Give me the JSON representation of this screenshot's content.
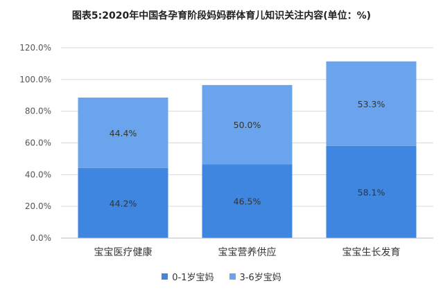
{
  "colors": {
    "series_0_1": "#3f86e0",
    "series_3_6": "#6aa4ec",
    "grid": "#d9d9d9",
    "axis": "#bfbfbf"
  },
  "chart_data": {
    "type": "bar",
    "stacked": true,
    "title": "图表5:2020年中国各孕育阶段妈妈群体育儿知识关注内容(单位：%)",
    "categories": [
      "宝宝医疗健康",
      "宝宝营养供应",
      "宝宝生长发育"
    ],
    "series": [
      {
        "name": "0-1岁宝妈",
        "values": [
          44.2,
          46.5,
          58.1
        ],
        "labels": [
          "44.2%",
          "46.5%",
          "58.1%"
        ]
      },
      {
        "name": "3-6岁宝妈",
        "values": [
          44.4,
          50.0,
          53.3
        ],
        "labels": [
          "44.4%",
          "50.0%",
          "53.3%"
        ]
      }
    ],
    "ylim": [
      0,
      120
    ],
    "yticks": [
      "0.0%",
      "20.0%",
      "40.0%",
      "60.0%",
      "80.0%",
      "100.0%",
      "120.0%"
    ],
    "grid": true,
    "legend": "bottom"
  }
}
